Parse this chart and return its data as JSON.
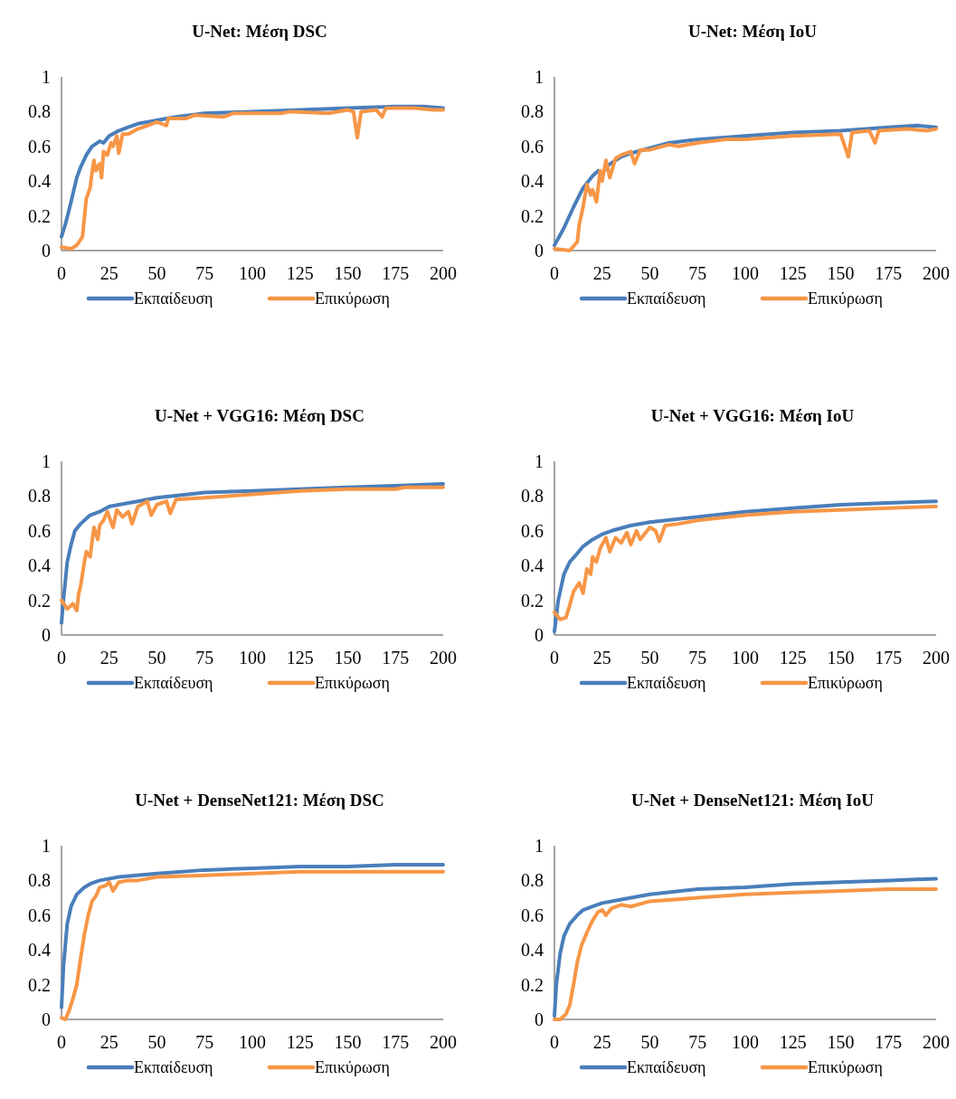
{
  "chart_data": [
    {
      "type": "line",
      "title": "U-Net: Μέση DSC",
      "xlim": [
        0,
        200
      ],
      "xticks": [
        0,
        25,
        50,
        75,
        100,
        125,
        150,
        175,
        200
      ],
      "ylim": [
        0,
        1
      ],
      "yticks": [
        0,
        0.2,
        0.4,
        0.6,
        0.8,
        1
      ],
      "legend": "bottom",
      "grid": false,
      "series": [
        {
          "name": "Εκπαίδευση",
          "color": "#4a7ebb",
          "x": [
            0,
            2,
            5,
            8,
            10,
            13,
            16,
            20,
            22,
            25,
            30,
            35,
            40,
            50,
            60,
            75,
            100,
            125,
            150,
            175,
            190,
            200
          ],
          "values": [
            0.08,
            0.15,
            0.28,
            0.42,
            0.48,
            0.55,
            0.6,
            0.63,
            0.62,
            0.66,
            0.69,
            0.71,
            0.73,
            0.75,
            0.77,
            0.79,
            0.8,
            0.81,
            0.82,
            0.83,
            0.83,
            0.82
          ]
        },
        {
          "name": "Επικύρωση",
          "color": "#f79646",
          "x": [
            0,
            5,
            8,
            11,
            13,
            15,
            16,
            17,
            18,
            20,
            21,
            22,
            24,
            26,
            27,
            29,
            30,
            32,
            35,
            40,
            45,
            50,
            55,
            56,
            65,
            70,
            85,
            90,
            100,
            115,
            120,
            140,
            150,
            153,
            155,
            157,
            165,
            168,
            170,
            185,
            195,
            200
          ],
          "values": [
            0.02,
            0.01,
            0.03,
            0.08,
            0.3,
            0.36,
            0.45,
            0.52,
            0.46,
            0.5,
            0.42,
            0.57,
            0.55,
            0.62,
            0.6,
            0.66,
            0.56,
            0.67,
            0.67,
            0.7,
            0.72,
            0.74,
            0.72,
            0.76,
            0.76,
            0.78,
            0.77,
            0.79,
            0.79,
            0.79,
            0.8,
            0.79,
            0.81,
            0.8,
            0.65,
            0.8,
            0.81,
            0.77,
            0.82,
            0.82,
            0.81,
            0.81
          ]
        }
      ]
    },
    {
      "type": "line",
      "title": "U-Net: Μέση IoU",
      "xlim": [
        0,
        200
      ],
      "xticks": [
        0,
        25,
        50,
        75,
        100,
        125,
        150,
        175,
        200
      ],
      "ylim": [
        0,
        1
      ],
      "yticks": [
        0,
        0.2,
        0.4,
        0.6,
        0.8,
        1
      ],
      "legend": "bottom",
      "grid": false,
      "series": [
        {
          "name": "Εκπαίδευση",
          "color": "#4a7ebb",
          "x": [
            0,
            5,
            10,
            15,
            20,
            23,
            25,
            28,
            35,
            40,
            50,
            60,
            75,
            100,
            125,
            150,
            175,
            190,
            200
          ],
          "values": [
            0.03,
            0.13,
            0.25,
            0.36,
            0.43,
            0.46,
            0.44,
            0.49,
            0.54,
            0.56,
            0.59,
            0.62,
            0.64,
            0.66,
            0.68,
            0.69,
            0.71,
            0.72,
            0.71
          ]
        },
        {
          "name": "Επικύρωση",
          "color": "#f79646",
          "x": [
            0,
            8,
            12,
            13,
            15,
            17,
            19,
            20,
            22,
            24,
            25,
            27,
            29,
            32,
            35,
            40,
            42,
            45,
            50,
            60,
            65,
            75,
            90,
            100,
            125,
            150,
            154,
            156,
            165,
            168,
            170,
            185,
            195,
            200
          ],
          "values": [
            0.01,
            0,
            0.05,
            0.15,
            0.25,
            0.38,
            0.32,
            0.35,
            0.28,
            0.46,
            0.4,
            0.52,
            0.42,
            0.53,
            0.55,
            0.57,
            0.5,
            0.58,
            0.58,
            0.61,
            0.6,
            0.62,
            0.64,
            0.64,
            0.66,
            0.67,
            0.54,
            0.68,
            0.69,
            0.62,
            0.69,
            0.7,
            0.69,
            0.7
          ]
        }
      ]
    },
    {
      "type": "line",
      "title": "U-Net + VGG16: Μέση DSC",
      "xlim": [
        0,
        200
      ],
      "xticks": [
        0,
        25,
        50,
        75,
        100,
        125,
        150,
        175,
        200
      ],
      "ylim": [
        0,
        1
      ],
      "yticks": [
        0,
        0.2,
        0.4,
        0.6,
        0.8,
        1
      ],
      "legend": "bottom",
      "grid": false,
      "series": [
        {
          "name": "Εκπαίδευση",
          "color": "#4a7ebb",
          "x": [
            0,
            1,
            3,
            5,
            7,
            10,
            15,
            20,
            25,
            30,
            40,
            50,
            75,
            100,
            125,
            150,
            175,
            200
          ],
          "values": [
            0.07,
            0.2,
            0.42,
            0.52,
            0.6,
            0.64,
            0.69,
            0.71,
            0.74,
            0.75,
            0.77,
            0.79,
            0.82,
            0.83,
            0.84,
            0.85,
            0.86,
            0.87
          ]
        },
        {
          "name": "Επικύρωση",
          "color": "#f79646",
          "x": [
            0,
            3,
            6,
            8,
            9,
            10,
            12,
            13,
            15,
            17,
            19,
            20,
            22,
            24,
            27,
            29,
            32,
            35,
            37,
            40,
            45,
            47,
            50,
            55,
            57,
            60,
            75,
            100,
            125,
            150,
            175,
            180,
            200
          ],
          "values": [
            0.2,
            0.15,
            0.18,
            0.14,
            0.24,
            0.28,
            0.42,
            0.48,
            0.45,
            0.62,
            0.55,
            0.63,
            0.66,
            0.71,
            0.62,
            0.72,
            0.68,
            0.71,
            0.64,
            0.74,
            0.77,
            0.69,
            0.75,
            0.77,
            0.7,
            0.78,
            0.79,
            0.81,
            0.83,
            0.84,
            0.84,
            0.85,
            0.85
          ]
        }
      ]
    },
    {
      "type": "line",
      "title": "U-Net + VGG16: Μέση IoU",
      "xlim": [
        0,
        200
      ],
      "xticks": [
        0,
        25,
        50,
        75,
        100,
        125,
        150,
        175,
        200
      ],
      "ylim": [
        0,
        1
      ],
      "yticks": [
        0,
        0.2,
        0.4,
        0.6,
        0.8,
        1
      ],
      "legend": "bottom",
      "grid": false,
      "series": [
        {
          "name": "Εκπαίδευση",
          "color": "#4a7ebb",
          "x": [
            0,
            2,
            5,
            8,
            12,
            15,
            20,
            25,
            30,
            40,
            50,
            75,
            100,
            125,
            150,
            175,
            200
          ],
          "values": [
            0.02,
            0.2,
            0.35,
            0.42,
            0.47,
            0.51,
            0.55,
            0.58,
            0.6,
            0.63,
            0.65,
            0.68,
            0.71,
            0.73,
            0.75,
            0.76,
            0.77
          ]
        },
        {
          "name": "Επικύρωση",
          "color": "#f79646",
          "x": [
            0,
            3,
            6,
            8,
            10,
            13,
            15,
            17,
            19,
            20,
            22,
            24,
            27,
            29,
            32,
            35,
            38,
            40,
            43,
            45,
            50,
            53,
            55,
            58,
            65,
            75,
            100,
            125,
            150,
            175,
            200
          ],
          "values": [
            0.13,
            0.09,
            0.1,
            0.17,
            0.25,
            0.3,
            0.24,
            0.38,
            0.35,
            0.45,
            0.42,
            0.5,
            0.56,
            0.48,
            0.56,
            0.53,
            0.59,
            0.52,
            0.6,
            0.55,
            0.62,
            0.6,
            0.54,
            0.63,
            0.64,
            0.66,
            0.69,
            0.71,
            0.72,
            0.73,
            0.74
          ]
        }
      ]
    },
    {
      "type": "line",
      "title": "U-Net + DenseNet121: Μέση DSC",
      "xlim": [
        0,
        200
      ],
      "xticks": [
        0,
        25,
        50,
        75,
        100,
        125,
        150,
        175,
        200
      ],
      "ylim": [
        0,
        1
      ],
      "yticks": [
        0,
        0.2,
        0.4,
        0.6,
        0.8,
        1
      ],
      "legend": "bottom",
      "grid": false,
      "series": [
        {
          "name": "Εκπαίδευση",
          "color": "#4a7ebb",
          "x": [
            0,
            1,
            3,
            5,
            8,
            12,
            15,
            20,
            30,
            50,
            75,
            100,
            125,
            150,
            175,
            200
          ],
          "values": [
            0.07,
            0.3,
            0.55,
            0.65,
            0.72,
            0.76,
            0.78,
            0.8,
            0.82,
            0.84,
            0.86,
            0.87,
            0.88,
            0.88,
            0.89,
            0.89
          ]
        },
        {
          "name": "Επικύρωση",
          "color": "#f79646",
          "x": [
            0,
            2,
            4,
            6,
            8,
            10,
            12,
            14,
            16,
            18,
            20,
            23,
            25,
            27,
            30,
            35,
            40,
            50,
            75,
            100,
            125,
            150,
            175,
            200
          ],
          "values": [
            0.01,
            0,
            0.05,
            0.12,
            0.2,
            0.35,
            0.49,
            0.6,
            0.68,
            0.71,
            0.76,
            0.77,
            0.79,
            0.74,
            0.79,
            0.8,
            0.8,
            0.82,
            0.83,
            0.84,
            0.85,
            0.85,
            0.85,
            0.85
          ]
        }
      ]
    },
    {
      "type": "line",
      "title": "U-Net + DenseNet121: Μέση IoU",
      "xlim": [
        0,
        200
      ],
      "xticks": [
        0,
        25,
        50,
        75,
        100,
        125,
        150,
        175,
        200
      ],
      "ylim": [
        0,
        1
      ],
      "yticks": [
        0,
        0.2,
        0.4,
        0.6,
        0.8,
        1
      ],
      "legend": "bottom",
      "grid": false,
      "series": [
        {
          "name": "Εκπαίδευση",
          "color": "#4a7ebb",
          "x": [
            0,
            1,
            3,
            5,
            8,
            12,
            15,
            20,
            25,
            35,
            50,
            75,
            100,
            125,
            150,
            175,
            200
          ],
          "values": [
            0.02,
            0.2,
            0.38,
            0.48,
            0.55,
            0.6,
            0.63,
            0.65,
            0.67,
            0.69,
            0.72,
            0.75,
            0.76,
            0.78,
            0.79,
            0.8,
            0.81
          ]
        },
        {
          "name": "Επικύρωση",
          "color": "#f79646",
          "x": [
            0,
            3,
            6,
            8,
            10,
            12,
            14,
            17,
            20,
            23,
            25,
            27,
            30,
            35,
            40,
            50,
            75,
            100,
            125,
            150,
            175,
            200
          ],
          "values": [
            0,
            0,
            0.03,
            0.08,
            0.2,
            0.33,
            0.42,
            0.5,
            0.57,
            0.62,
            0.63,
            0.6,
            0.64,
            0.66,
            0.65,
            0.68,
            0.7,
            0.72,
            0.73,
            0.74,
            0.75,
            0.75
          ]
        }
      ]
    }
  ]
}
